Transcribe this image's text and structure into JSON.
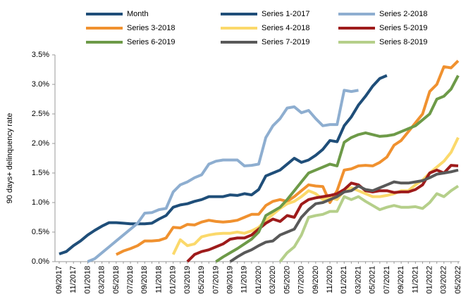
{
  "chart_data": {
    "type": "line",
    "y_label": "90 days+ delinquency rate",
    "categories": [
      "09/2017",
      null,
      "11/2017",
      null,
      "01/2018",
      null,
      "03/2018",
      null,
      "05/2018",
      null,
      "07/2018",
      null,
      "09/2018",
      null,
      "11/2018",
      null,
      "01/2019",
      null,
      "03/2019",
      null,
      "05/2019",
      null,
      "07/2019",
      null,
      "09/2019",
      null,
      "11/2019",
      null,
      "01/2020",
      null,
      "03/2020",
      null,
      "05/2020",
      null,
      "07/2020",
      null,
      "09/2020",
      null,
      "11/2020",
      null,
      "01/2021",
      null,
      "03/2021",
      null,
      "05/2021",
      null,
      "07/2021",
      null,
      "09/2021",
      null,
      "11/2021",
      null,
      "01/2022",
      null,
      "03/2022",
      null,
      "05/2022"
    ],
    "ylim": [
      0,
      3.5
    ],
    "yticks": [
      {
        "value": 0,
        "label": "0.0%"
      },
      {
        "value": 0.5,
        "label": "0.5%"
      },
      {
        "value": 1,
        "label": "1.0%"
      },
      {
        "value": 1.5,
        "label": "1.5%"
      },
      {
        "value": 2,
        "label": "2.0%"
      },
      {
        "value": 2.5,
        "label": "2.5%"
      },
      {
        "value": 3,
        "label": "3.0%"
      },
      {
        "value": 3.5,
        "label": "3.5%"
      }
    ],
    "series": [
      {
        "name": "Month",
        "color": "#1f4e79",
        "values": [
          null,
          null,
          null,
          null,
          null,
          null,
          null,
          null,
          null,
          null,
          null,
          null,
          null,
          null,
          null,
          null,
          null,
          null,
          null,
          null,
          null,
          null,
          null,
          null,
          null,
          null,
          null,
          null,
          null,
          null,
          null,
          null,
          null,
          null,
          null,
          null,
          null,
          null,
          null,
          null,
          null,
          null,
          null,
          null,
          null,
          null,
          null,
          null,
          null,
          null,
          null,
          null,
          null,
          null,
          null,
          null,
          null
        ]
      },
      {
        "name": "Series 1-2017",
        "color": "#1f4e79",
        "values": [
          0.13,
          0.17,
          0.27,
          0.35,
          0.45,
          0.53,
          0.6,
          0.66,
          0.66,
          0.65,
          0.64,
          0.64,
          0.64,
          0.65,
          0.72,
          0.78,
          0.92,
          0.96,
          0.98,
          1.02,
          1.05,
          1.1,
          1.1,
          1.1,
          1.13,
          1.12,
          1.15,
          1.13,
          1.22,
          1.45,
          1.5,
          1.55,
          1.65,
          1.75,
          1.68,
          1.72,
          1.8,
          1.9,
          2.05,
          2.03,
          2.3,
          2.45,
          2.65,
          2.8,
          2.97,
          3.1,
          3.15,
          null,
          null,
          null,
          null,
          null,
          null,
          null,
          null,
          null,
          null
        ]
      },
      {
        "name": "Series 2-2018",
        "color": "#8eaed0",
        "values": [
          null,
          null,
          null,
          null,
          0,
          0.05,
          0.15,
          0.25,
          0.35,
          0.45,
          0.55,
          0.65,
          0.82,
          0.83,
          0.88,
          0.9,
          1.18,
          1.3,
          1.35,
          1.42,
          1.47,
          1.65,
          1.7,
          1.72,
          1.72,
          1.72,
          1.62,
          1.63,
          1.65,
          2.1,
          2.3,
          2.42,
          2.6,
          2.62,
          2.52,
          2.56,
          2.42,
          2.3,
          2.32,
          2.32,
          2.9,
          2.88,
          2.9,
          null,
          null,
          null,
          null,
          null,
          null,
          null,
          null,
          null,
          null,
          null,
          null,
          null,
          null
        ]
      },
      {
        "name": "Series 3-2018",
        "color": "#f0912f",
        "values": [
          null,
          null,
          null,
          null,
          null,
          null,
          null,
          null,
          0.12,
          0.18,
          0.22,
          0.27,
          0.35,
          0.35,
          0.36,
          0.4,
          0.58,
          0.57,
          0.63,
          0.62,
          0.67,
          0.7,
          0.68,
          0.67,
          0.68,
          0.7,
          0.75,
          0.8,
          0.8,
          0.95,
          1.02,
          1.05,
          1.02,
          1.1,
          1.2,
          1.3,
          1.28,
          1.27,
          1.0,
          1.2,
          1.55,
          1.57,
          1.62,
          1.63,
          1.62,
          1.68,
          1.77,
          1.97,
          2.05,
          2.2,
          2.35,
          2.5,
          2.88,
          3.0,
          3.3,
          3.28,
          3.4
        ]
      },
      {
        "name": "Series 4-2018",
        "color": "#fbd96b",
        "values": [
          null,
          null,
          null,
          null,
          null,
          null,
          null,
          null,
          null,
          null,
          null,
          null,
          null,
          null,
          null,
          null,
          0.12,
          0.37,
          0.27,
          0.3,
          0.42,
          0.45,
          0.47,
          0.48,
          0.48,
          0.5,
          0.48,
          0.52,
          0.58,
          0.7,
          0.8,
          0.9,
          0.98,
          1.02,
          1.1,
          1.2,
          1.15,
          1.05,
          1.08,
          1.05,
          1.2,
          1.25,
          1.2,
          1.15,
          1.1,
          1.1,
          1.12,
          1.15,
          1.2,
          1.2,
          1.3,
          1.38,
          1.5,
          1.6,
          1.7,
          1.85,
          2.1
        ]
      },
      {
        "name": "Series 5-2019",
        "color": "#9e1b1b",
        "values": [
          null,
          null,
          null,
          null,
          null,
          null,
          null,
          null,
          null,
          null,
          null,
          null,
          null,
          null,
          null,
          null,
          null,
          null,
          0,
          0.12,
          0.17,
          0.2,
          0.25,
          0.3,
          0.38,
          0.4,
          0.4,
          0.45,
          0.55,
          0.65,
          0.72,
          0.68,
          0.78,
          0.75,
          0.97,
          1.05,
          1.08,
          1.1,
          1.12,
          1.15,
          1.22,
          1.33,
          1.3,
          1.2,
          1.18,
          1.2,
          1.2,
          1.17,
          1.18,
          1.18,
          1.22,
          1.3,
          1.5,
          1.55,
          1.5,
          1.63,
          1.62
        ]
      },
      {
        "name": "Series 6-2019",
        "color": "#6d9a48",
        "values": [
          null,
          null,
          null,
          null,
          null,
          null,
          null,
          null,
          null,
          null,
          null,
          null,
          null,
          null,
          null,
          null,
          null,
          null,
          null,
          null,
          null,
          null,
          0,
          0.08,
          0.15,
          0.22,
          0.3,
          0.38,
          0.5,
          0.78,
          0.85,
          0.92,
          1.05,
          1.2,
          1.35,
          1.5,
          1.55,
          1.6,
          1.65,
          1.62,
          2.02,
          2.1,
          2.15,
          2.18,
          2.15,
          2.12,
          2.13,
          2.15,
          2.2,
          2.25,
          2.3,
          2.4,
          2.5,
          2.75,
          2.8,
          2.92,
          3.15
        ]
      },
      {
        "name": "Series 7-2019",
        "color": "#595959",
        "values": [
          null,
          null,
          null,
          null,
          null,
          null,
          null,
          null,
          null,
          null,
          null,
          null,
          null,
          null,
          null,
          null,
          null,
          null,
          null,
          null,
          null,
          null,
          null,
          null,
          0,
          0.08,
          0.15,
          0.2,
          0.27,
          0.33,
          0.35,
          0.45,
          0.5,
          0.55,
          0.75,
          0.88,
          0.98,
          1.0,
          1.05,
          1.1,
          1.18,
          1.2,
          1.28,
          1.22,
          1.2,
          1.25,
          1.3,
          1.35,
          1.33,
          1.33,
          1.35,
          1.37,
          1.42,
          1.48,
          1.5,
          1.52,
          1.55
        ]
      },
      {
        "name": "Series 8-2019",
        "color": "#b5cf8a",
        "values": [
          null,
          null,
          null,
          null,
          null,
          null,
          null,
          null,
          null,
          null,
          null,
          null,
          null,
          null,
          null,
          null,
          null,
          null,
          null,
          null,
          null,
          null,
          null,
          null,
          null,
          null,
          null,
          null,
          null,
          null,
          null,
          0,
          0.15,
          0.25,
          0.45,
          0.75,
          0.78,
          0.8,
          0.85,
          0.85,
          1.1,
          1.05,
          1.1,
          1.02,
          0.95,
          0.88,
          0.92,
          0.95,
          0.92,
          0.92,
          0.93,
          0.9,
          1.0,
          1.15,
          1.1,
          1.2,
          1.28
        ]
      }
    ]
  }
}
